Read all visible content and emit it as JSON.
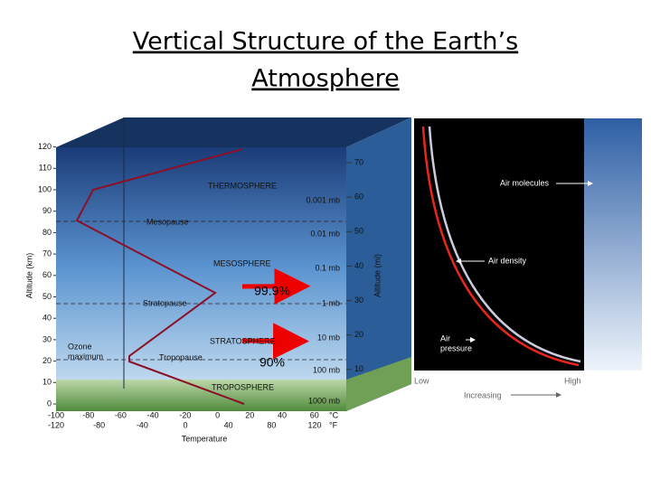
{
  "header": {
    "title_lines": [
      "Vertical Structure of the Earth’s",
      "Atmosphere"
    ]
  },
  "left_panel": {
    "altitude_km_label": "Altitude (km)",
    "altitude_km_ticks": [
      0,
      10,
      20,
      30,
      40,
      50,
      60,
      70,
      80,
      90,
      100,
      110,
      120
    ],
    "altitude_mi_label": "Altitude (mi)",
    "altitude_mi_ticks": [
      10,
      20,
      30,
      40,
      50,
      60,
      70
    ],
    "celsius_ticks": [
      -100,
      -80,
      -60,
      -40,
      -20,
      0,
      20,
      40,
      60
    ],
    "celsius_unit": "°C",
    "fahrenheit_ticks": [
      -120,
      -80,
      -40,
      0,
      40,
      80,
      120
    ],
    "fahrenheit_unit": "°F",
    "temperature_label": "Temperature",
    "pressure_labels": [
      "0.001 mb",
      "0.01 mb",
      "0.1 mb",
      "1 mb",
      "10 mb",
      "100 mb",
      "1000 mb"
    ],
    "layers": [
      "THERMOSPHERE",
      "Mesopause",
      "MESOSPHERE",
      "Stratopause",
      "STRATOSPHERE",
      "Tropopause",
      "TROPOSPHERE"
    ],
    "ozone_lines": [
      "Ozone",
      "maximum"
    ],
    "arrows": [
      "99.9%",
      "90%"
    ]
  },
  "right_panel": {
    "air_molecules": "Air molecules",
    "air_density": "Air density",
    "air_pressure_lines": [
      "Air",
      "pressure"
    ],
    "low": "Low",
    "high": "High",
    "increasing": "Increasing"
  }
}
